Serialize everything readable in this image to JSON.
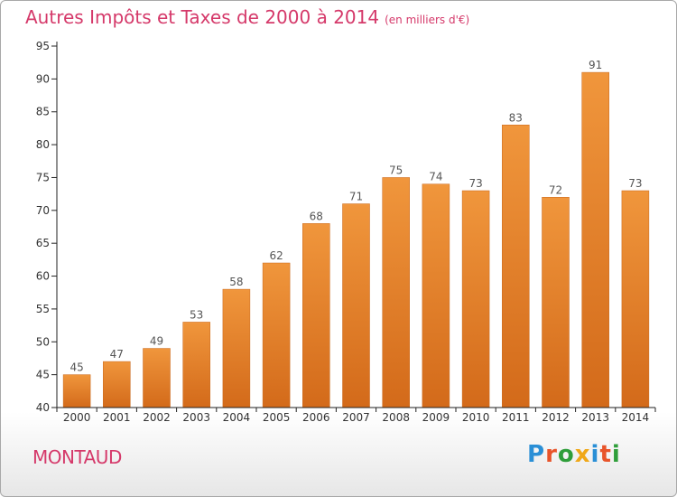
{
  "title": "Autres Impôts et Taxes de 2000 à 2014",
  "subtitle": "(en milliers d'€)",
  "commune": "MONTAUD",
  "logo": {
    "text": "Proxiti",
    "letter_colors": [
      "#2a8fd6",
      "#e8542a",
      "#2f9e3a",
      "#f0a818",
      "#2a8fd6",
      "#e8542a",
      "#2f9e3a"
    ]
  },
  "chart_data": {
    "type": "bar",
    "categories": [
      "2000",
      "2001",
      "2002",
      "2003",
      "2004",
      "2005",
      "2006",
      "2007",
      "2008",
      "2009",
      "2010",
      "2011",
      "2012",
      "2013",
      "2014"
    ],
    "values": [
      45,
      47,
      49,
      53,
      58,
      62,
      68,
      71,
      75,
      74,
      73,
      83,
      72,
      91,
      73
    ],
    "value_labels": [
      "45",
      "47",
      "49",
      "53",
      "58",
      "62",
      "68",
      "71",
      "75",
      "74",
      "73",
      "83",
      "72",
      "91",
      "73"
    ],
    "title": "Autres Impôts et Taxes de 2000 à 2014",
    "xlabel": "",
    "ylabel": "",
    "ylim": [
      40,
      95
    ],
    "yticks": [
      40,
      45,
      50,
      55,
      60,
      65,
      70,
      75,
      80,
      85,
      90,
      95
    ],
    "ytick_labels": [
      "40",
      "45",
      "50",
      "55",
      "60",
      "65",
      "70",
      "75",
      "80",
      "85",
      "90",
      "95"
    ],
    "grid": false,
    "bar_color": "#f0963c",
    "bar_color_dark": "#d36a1a"
  }
}
